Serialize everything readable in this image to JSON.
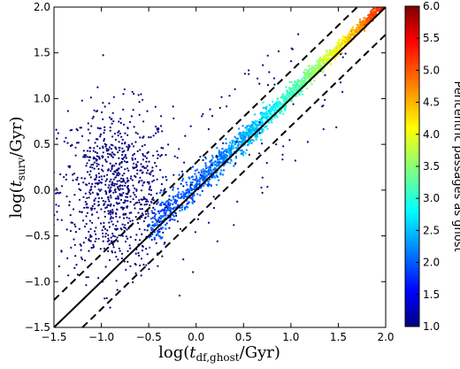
{
  "chart_data": {
    "type": "scatter",
    "xlabel": "log(t_df,ghost/Gyr)",
    "ylabel": "log(t_surv/Gyr)",
    "xlim": [
      -1.5,
      2.0
    ],
    "ylim": [
      -1.5,
      2.0
    ],
    "x_ticks": [
      "−1.5",
      "−1.0",
      "−0.5",
      "0.0",
      "0.5",
      "1.0",
      "1.5",
      "2.0"
    ],
    "y_ticks": [
      "−1.5",
      "−1.0",
      "−0.5",
      "0.0",
      "0.5",
      "1.0",
      "1.5",
      "2.0"
    ],
    "grid": false,
    "colorbar": {
      "label": "Pericentric passages as ghost",
      "range": [
        1.0,
        6.0
      ],
      "ticks": [
        "1.0",
        "1.5",
        "2.0",
        "2.5",
        "3.0",
        "3.5",
        "4.0",
        "4.5",
        "5.0",
        "5.5",
        "6.0"
      ],
      "colormap": "jet",
      "colors": [
        "#00007f",
        "#0000ff",
        "#007fff",
        "#00ffff",
        "#7fff7f",
        "#ffff00",
        "#ff7f00",
        "#ff0000",
        "#7f0000"
      ]
    },
    "lines": [
      {
        "style": "solid",
        "x": [
          -1.5,
          2.0
        ],
        "y": [
          -1.5,
          2.0
        ]
      },
      {
        "style": "dashed",
        "x": [
          -1.5,
          1.7
        ],
        "y": [
          -1.2,
          2.0
        ]
      },
      {
        "style": "dashed",
        "x": [
          -1.2,
          2.0
        ],
        "y": [
          -1.5,
          1.7
        ]
      }
    ],
    "scatter_groups": [
      {
        "description_key": "population-a",
        "center": [
          -0.85,
          0.0
        ],
        "spread": [
          0.3,
          0.45
        ],
        "count": 900,
        "color": "#00007f"
      },
      {
        "description_key": "population-b",
        "diagonal_from": -0.5,
        "diagonal_to": 2.0,
        "offset_spread": 0.08,
        "count": 1800
      }
    ]
  }
}
